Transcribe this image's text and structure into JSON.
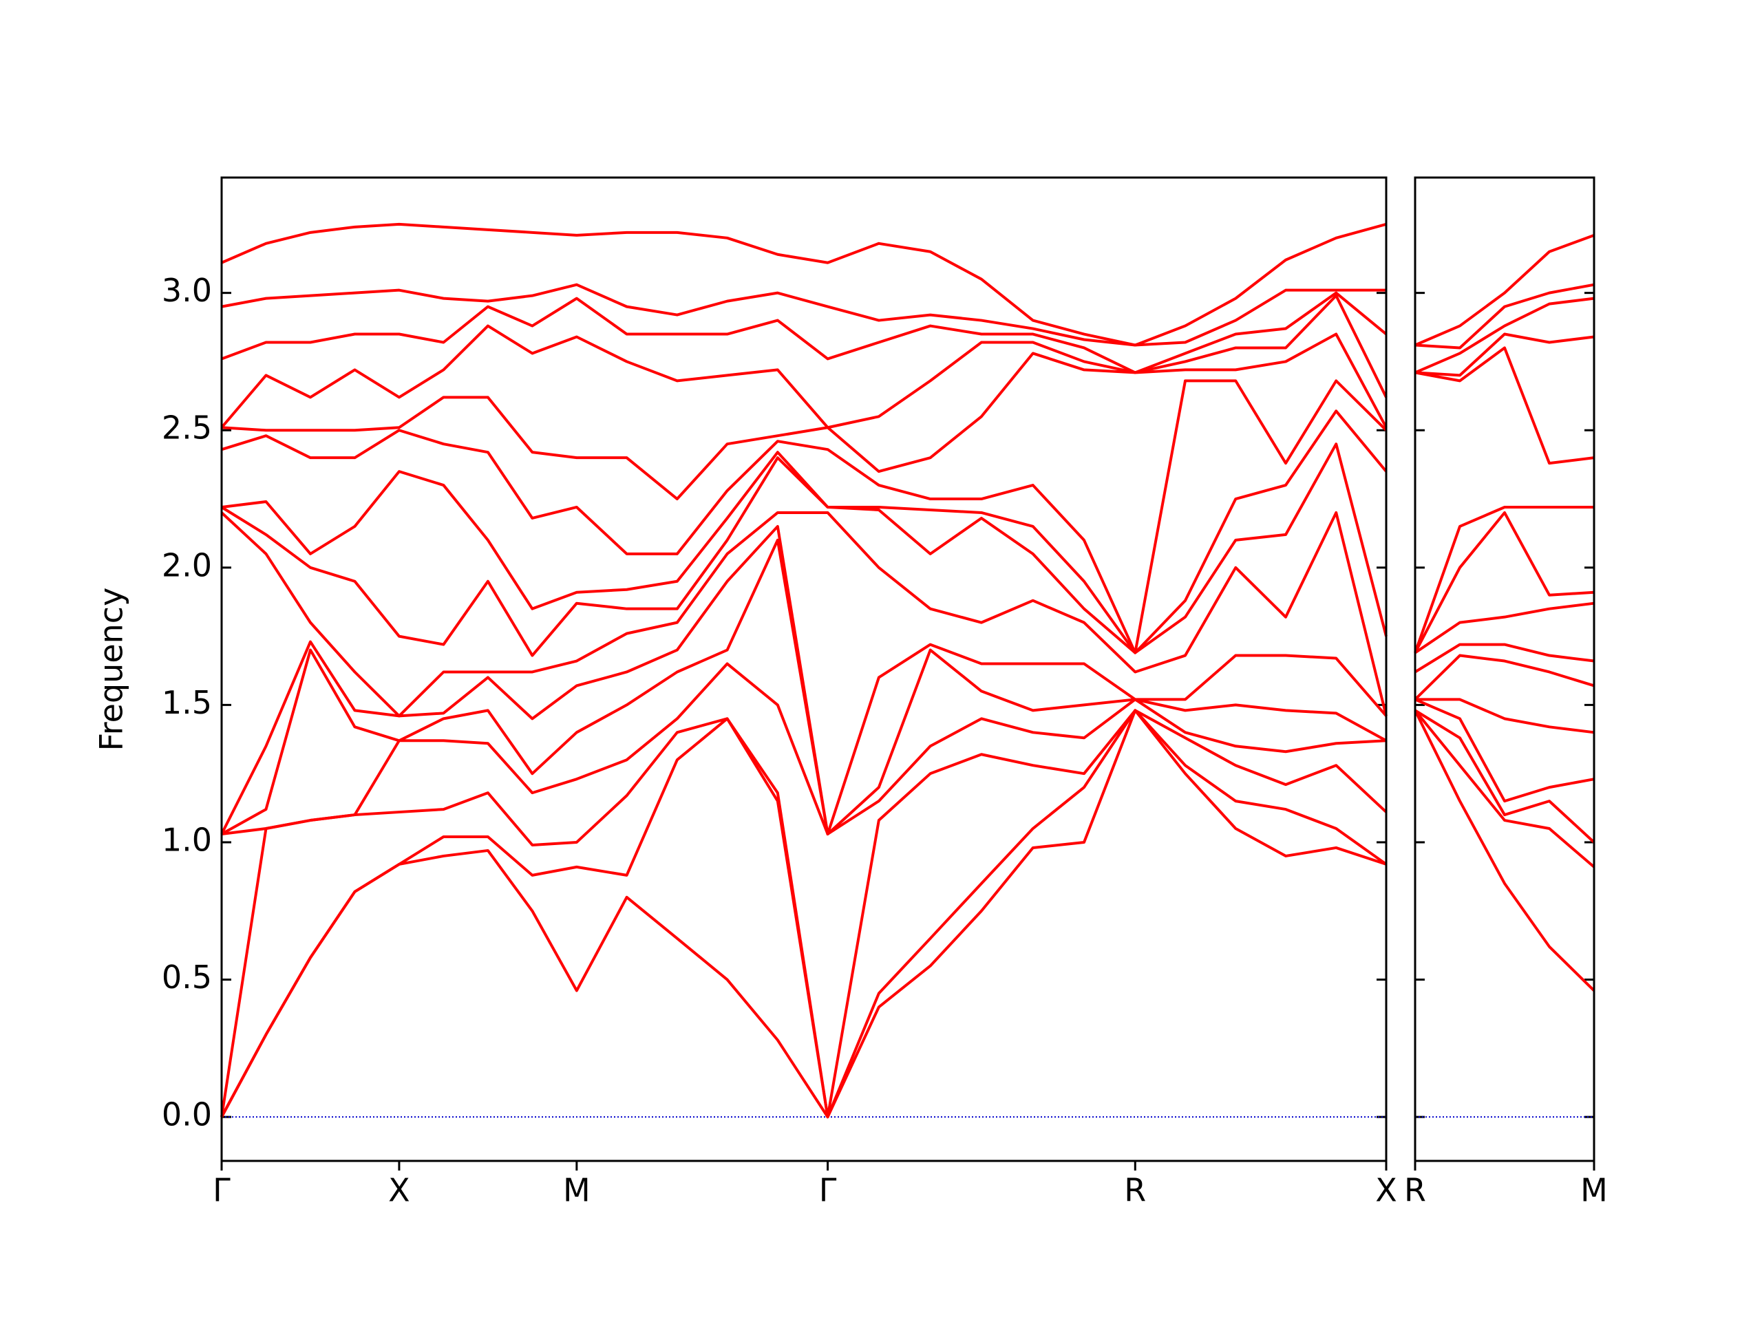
{
  "chart_data": [
    {
      "type": "line",
      "ylabel": "Frequency",
      "color": "#ff0000",
      "hline": 0,
      "hline_color": "#0000cc",
      "xlim": [
        0,
        3.28
      ],
      "ylim": [
        -0.16,
        3.42
      ],
      "xticks": [
        {
          "value": 0,
          "label": "Γ"
        },
        {
          "value": 0.5,
          "label": "X"
        },
        {
          "value": 1.0,
          "label": "M"
        },
        {
          "value": 1.707,
          "label": "Γ"
        },
        {
          "value": 2.573,
          "label": "R"
        },
        {
          "value": 3.28,
          "label": "X"
        }
      ],
      "yticks": [
        {
          "value": 0,
          "label": "0.0"
        },
        0.5,
        {
          "value": 1,
          "label": "1.0"
        },
        1.5,
        {
          "value": 2,
          "label": "2.0"
        },
        2.5,
        {
          "value": 3,
          "label": "3.0"
        }
      ],
      "x": [
        0,
        0.125,
        0.25,
        0.375,
        0.5,
        0.625,
        0.75,
        0.875,
        1.0,
        1.141,
        1.283,
        1.424,
        1.566,
        1.707,
        1.851,
        1.996,
        2.14,
        2.285,
        2.429,
        2.573,
        2.714,
        2.856,
        2.997,
        3.139,
        3.28
      ],
      "series": [
        {
          "values": [
            0,
            0.3,
            0.58,
            0.82,
            0.92,
            0.95,
            0.97,
            0.75,
            0.46,
            0.8,
            0.65,
            0.5,
            0.28,
            0,
            0.4,
            0.55,
            0.75,
            0.98,
            1.0,
            1.48,
            1.25,
            1.05,
            0.95,
            0.98,
            0.92
          ]
        },
        {
          "values": [
            0,
            0.3,
            0.58,
            0.82,
            0.92,
            1.02,
            1.02,
            0.88,
            0.91,
            0.88,
            1.3,
            1.45,
            1.15,
            0,
            0.45,
            0.65,
            0.85,
            1.05,
            1.2,
            1.48,
            1.28,
            1.15,
            1.12,
            1.05,
            0.92
          ]
        },
        {
          "values": [
            0,
            1.05,
            1.08,
            1.1,
            1.11,
            1.12,
            1.18,
            0.99,
            1.0,
            1.17,
            1.4,
            1.45,
            1.18,
            0,
            1.08,
            1.25,
            1.32,
            1.28,
            1.25,
            1.48,
            1.38,
            1.28,
            1.21,
            1.28,
            1.11
          ]
        },
        {
          "values": [
            1.03,
            1.05,
            1.08,
            1.1,
            1.37,
            1.37,
            1.36,
            1.18,
            1.23,
            1.3,
            1.45,
            1.65,
            1.5,
            1.03,
            1.15,
            1.35,
            1.45,
            1.4,
            1.38,
            1.52,
            1.4,
            1.35,
            1.33,
            1.36,
            1.37
          ]
        },
        {
          "values": [
            1.03,
            1.12,
            1.7,
            1.42,
            1.37,
            1.45,
            1.48,
            1.25,
            1.4,
            1.5,
            1.62,
            1.7,
            2.1,
            1.03,
            1.2,
            1.7,
            1.55,
            1.48,
            1.5,
            1.52,
            1.48,
            1.5,
            1.48,
            1.47,
            1.37
          ]
        },
        {
          "values": [
            1.03,
            1.35,
            1.73,
            1.48,
            1.46,
            1.47,
            1.6,
            1.45,
            1.57,
            1.62,
            1.7,
            1.95,
            2.15,
            1.03,
            1.6,
            1.72,
            1.65,
            1.65,
            1.65,
            1.52,
            1.52,
            1.68,
            1.68,
            1.67,
            1.46
          ]
        },
        {
          "values": [
            2.2,
            2.05,
            1.8,
            1.62,
            1.46,
            1.62,
            1.62,
            1.62,
            1.66,
            1.76,
            1.8,
            2.05,
            2.2,
            2.2,
            2.0,
            1.85,
            1.8,
            1.88,
            1.8,
            1.62,
            1.68,
            2.0,
            1.82,
            2.2,
            1.46
          ]
        },
        {
          "values": [
            2.22,
            2.12,
            2.0,
            1.95,
            1.75,
            1.72,
            1.95,
            1.68,
            1.87,
            1.85,
            1.85,
            2.1,
            2.4,
            2.22,
            2.21,
            2.05,
            2.18,
            2.05,
            1.85,
            1.69,
            1.82,
            2.1,
            2.12,
            2.45,
            1.75
          ]
        },
        {
          "values": [
            2.22,
            2.24,
            2.05,
            2.15,
            2.35,
            2.3,
            2.1,
            1.85,
            1.91,
            1.92,
            1.95,
            2.18,
            2.42,
            2.22,
            2.22,
            2.21,
            2.2,
            2.15,
            1.95,
            1.69,
            1.88,
            2.25,
            2.3,
            2.57,
            2.35
          ]
        },
        {
          "values": [
            2.43,
            2.48,
            2.4,
            2.4,
            2.5,
            2.45,
            2.42,
            2.18,
            2.22,
            2.05,
            2.05,
            2.28,
            2.46,
            2.43,
            2.3,
            2.25,
            2.25,
            2.3,
            2.1,
            1.69,
            2.68,
            2.68,
            2.38,
            2.68,
            2.5
          ]
        },
        {
          "values": [
            2.51,
            2.5,
            2.5,
            2.5,
            2.51,
            2.62,
            2.62,
            2.42,
            2.4,
            2.4,
            2.25,
            2.45,
            2.48,
            2.51,
            2.35,
            2.4,
            2.55,
            2.78,
            2.72,
            2.71,
            2.72,
            2.72,
            2.75,
            2.85,
            2.51
          ]
        },
        {
          "values": [
            2.51,
            2.7,
            2.62,
            2.72,
            2.62,
            2.72,
            2.88,
            2.78,
            2.84,
            2.75,
            2.68,
            2.7,
            2.72,
            2.51,
            2.55,
            2.68,
            2.82,
            2.82,
            2.75,
            2.71,
            2.75,
            2.8,
            2.8,
            2.99,
            2.62
          ]
        },
        {
          "values": [
            2.76,
            2.82,
            2.82,
            2.85,
            2.85,
            2.82,
            2.95,
            2.88,
            2.98,
            2.85,
            2.85,
            2.85,
            2.9,
            2.76,
            2.82,
            2.88,
            2.85,
            2.85,
            2.8,
            2.71,
            2.78,
            2.85,
            2.87,
            3.0,
            2.85
          ]
        },
        {
          "values": [
            2.95,
            2.98,
            2.99,
            3.0,
            3.01,
            2.98,
            2.97,
            2.99,
            3.03,
            2.95,
            2.92,
            2.97,
            3.0,
            2.95,
            2.9,
            2.92,
            2.9,
            2.87,
            2.83,
            2.81,
            2.82,
            2.9,
            3.01,
            3.01,
            3.01
          ]
        },
        {
          "values": [
            3.11,
            3.18,
            3.22,
            3.24,
            3.25,
            3.24,
            3.23,
            3.22,
            3.21,
            3.22,
            3.22,
            3.2,
            3.14,
            3.11,
            3.18,
            3.15,
            3.05,
            2.9,
            2.85,
            2.81,
            2.88,
            2.98,
            3.12,
            3.2,
            3.25
          ]
        }
      ]
    },
    {
      "type": "line",
      "color": "#ff0000",
      "hline": 0,
      "hline_color": "#0000cc",
      "ytick_labels": false,
      "xlim": [
        0,
        0.5
      ],
      "ylim": [
        -0.16,
        3.42
      ],
      "xticks": [
        {
          "value": 0,
          "label": "R"
        },
        {
          "value": 0.5,
          "label": "M"
        }
      ],
      "yticks": [
        0,
        0.5,
        1,
        1.5,
        2,
        2.5,
        3
      ],
      "x": [
        0,
        0.125,
        0.25,
        0.375,
        0.5
      ],
      "series": [
        {
          "values": [
            1.48,
            1.15,
            0.85,
            0.62,
            0.46
          ]
        },
        {
          "values": [
            1.48,
            1.28,
            1.08,
            1.05,
            0.91
          ]
        },
        {
          "values": [
            1.48,
            1.38,
            1.1,
            1.15,
            1.0
          ]
        },
        {
          "values": [
            1.52,
            1.45,
            1.15,
            1.2,
            1.23
          ]
        },
        {
          "values": [
            1.52,
            1.52,
            1.45,
            1.42,
            1.4
          ]
        },
        {
          "values": [
            1.52,
            1.68,
            1.66,
            1.62,
            1.57
          ]
        },
        {
          "values": [
            1.62,
            1.72,
            1.72,
            1.68,
            1.66
          ]
        },
        {
          "values": [
            1.69,
            1.8,
            1.82,
            1.85,
            1.87
          ]
        },
        {
          "values": [
            1.69,
            2.0,
            2.2,
            1.9,
            1.91
          ]
        },
        {
          "values": [
            1.69,
            2.15,
            2.22,
            2.22,
            2.22
          ]
        },
        {
          "values": [
            2.71,
            2.68,
            2.8,
            2.38,
            2.4
          ]
        },
        {
          "values": [
            2.71,
            2.7,
            2.85,
            2.82,
            2.84
          ]
        },
        {
          "values": [
            2.71,
            2.78,
            2.88,
            2.96,
            2.98
          ]
        },
        {
          "values": [
            2.81,
            2.8,
            2.95,
            3.0,
            3.03
          ]
        },
        {
          "values": [
            2.81,
            2.88,
            3.0,
            3.15,
            3.21
          ]
        }
      ]
    }
  ]
}
